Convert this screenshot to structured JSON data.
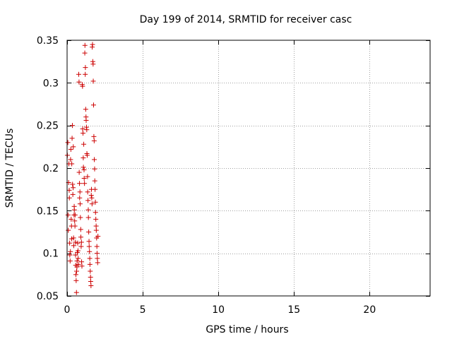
{
  "chart_data": {
    "type": "scatter",
    "title": "Day 199 of 2014, SRMTID for receiver casc",
    "xlabel": "GPS time / hours",
    "ylabel": "SRMTID / TECUs",
    "xlim": [
      0,
      24
    ],
    "ylim": [
      0.05,
      0.35
    ],
    "xticks": [
      0,
      5,
      10,
      15,
      20
    ],
    "xtick_labels": [
      "0",
      "5",
      "10",
      "15",
      "20"
    ],
    "yticks": [
      0.05,
      0.1,
      0.15,
      0.2,
      0.25,
      0.3,
      0.35
    ],
    "ytick_labels": [
      "0.05",
      "0.1",
      "0.15",
      "0.2",
      "0.25",
      "0.3",
      "0.35"
    ],
    "grid": true,
    "marker": "+",
    "series_color": "#cc0000",
    "series": [
      {
        "name": "SRMTID",
        "points": [
          [
            0.02,
            0.215
          ],
          [
            0.05,
            0.23
          ],
          [
            0.06,
            0.145
          ],
          [
            0.08,
            0.127
          ],
          [
            0.1,
            0.183
          ],
          [
            0.12,
            0.205
          ],
          [
            0.14,
            0.174
          ],
          [
            0.15,
            0.165
          ],
          [
            0.17,
            0.112
          ],
          [
            0.18,
            0.098
          ],
          [
            0.2,
            0.091
          ],
          [
            0.22,
            0.102
          ],
          [
            0.23,
            0.21
          ],
          [
            0.25,
            0.222
          ],
          [
            0.27,
            0.14
          ],
          [
            0.29,
            0.132
          ],
          [
            0.3,
            0.117
          ],
          [
            0.31,
            0.205
          ],
          [
            0.33,
            0.235
          ],
          [
            0.35,
            0.25
          ],
          [
            0.36,
            0.181
          ],
          [
            0.38,
            0.169
          ],
          [
            0.4,
            0.177
          ],
          [
            0.41,
            0.225
          ],
          [
            0.43,
            0.118
          ],
          [
            0.44,
            0.109
          ],
          [
            0.46,
            0.145
          ],
          [
            0.47,
            0.155
          ],
          [
            0.48,
            0.151
          ],
          [
            0.5,
            0.138
          ],
          [
            0.52,
            0.132
          ],
          [
            0.53,
            0.145
          ],
          [
            0.55,
            0.113
          ],
          [
            0.56,
            0.098
          ],
          [
            0.57,
            0.086
          ],
          [
            0.58,
            0.075
          ],
          [
            0.6,
            0.068
          ],
          [
            0.62,
            0.054
          ],
          [
            0.63,
            0.079
          ],
          [
            0.65,
            0.084
          ],
          [
            0.66,
            0.091
          ],
          [
            0.68,
            0.101
          ],
          [
            0.7,
            0.112
          ],
          [
            0.72,
            0.103
          ],
          [
            0.73,
            0.094
          ],
          [
            0.75,
            0.087
          ],
          [
            0.77,
            0.31
          ],
          [
            0.79,
            0.301
          ],
          [
            0.8,
            0.195
          ],
          [
            0.82,
            0.182
          ],
          [
            0.83,
            0.165
          ],
          [
            0.85,
            0.172
          ],
          [
            0.86,
            0.158
          ],
          [
            0.88,
            0.142
          ],
          [
            0.9,
            0.128
          ],
          [
            0.91,
            0.119
          ],
          [
            0.93,
            0.108
          ],
          [
            0.95,
            0.113
          ],
          [
            0.96,
            0.09
          ],
          [
            0.98,
            0.085
          ],
          [
            1.0,
            0.298
          ],
          [
            1.02,
            0.296
          ],
          [
            1.03,
            0.246
          ],
          [
            1.05,
            0.241
          ],
          [
            1.07,
            0.212
          ],
          [
            1.08,
            0.201
          ],
          [
            1.1,
            0.228
          ],
          [
            1.12,
            0.198
          ],
          [
            1.13,
            0.188
          ],
          [
            1.15,
            0.182
          ],
          [
            1.17,
            0.335
          ],
          [
            1.18,
            0.344
          ],
          [
            1.2,
            0.31
          ],
          [
            1.21,
            0.318
          ],
          [
            1.23,
            0.269
          ],
          [
            1.25,
            0.26
          ],
          [
            1.26,
            0.256
          ],
          [
            1.28,
            0.248
          ],
          [
            1.3,
            0.245
          ],
          [
            1.31,
            0.217
          ],
          [
            1.33,
            0.215
          ],
          [
            1.35,
            0.19
          ],
          [
            1.36,
            0.172
          ],
          [
            1.38,
            0.162
          ],
          [
            1.4,
            0.151
          ],
          [
            1.41,
            0.142
          ],
          [
            1.43,
            0.125
          ],
          [
            1.45,
            0.114
          ],
          [
            1.46,
            0.108
          ],
          [
            1.48,
            0.102
          ],
          [
            1.5,
            0.094
          ],
          [
            1.51,
            0.087
          ],
          [
            1.53,
            0.079
          ],
          [
            1.55,
            0.072
          ],
          [
            1.56,
            0.067
          ],
          [
            1.58,
            0.062
          ],
          [
            1.6,
            0.168
          ],
          [
            1.61,
            0.175
          ],
          [
            1.63,
            0.165
          ],
          [
            1.65,
            0.158
          ],
          [
            1.66,
            0.342
          ],
          [
            1.68,
            0.345
          ],
          [
            1.7,
            0.325
          ],
          [
            1.72,
            0.322
          ],
          [
            1.73,
            0.302
          ],
          [
            1.75,
            0.274
          ],
          [
            1.77,
            0.237
          ],
          [
            1.79,
            0.232
          ],
          [
            1.8,
            0.21
          ],
          [
            1.82,
            0.199
          ],
          [
            1.83,
            0.185
          ],
          [
            1.85,
            0.175
          ],
          [
            1.87,
            0.16
          ],
          [
            1.88,
            0.148
          ],
          [
            1.9,
            0.14
          ],
          [
            1.92,
            0.132
          ],
          [
            1.93,
            0.127
          ],
          [
            1.95,
            0.118
          ],
          [
            1.97,
            0.108
          ],
          [
            1.98,
            0.1
          ],
          [
            2.0,
            0.094
          ],
          [
            2.02,
            0.089
          ],
          [
            2.04,
            0.12
          ]
        ]
      }
    ]
  }
}
